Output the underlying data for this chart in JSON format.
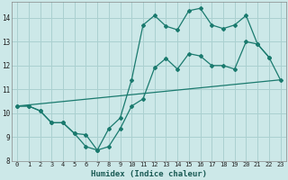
{
  "xlabel": "Humidex (Indice chaleur)",
  "xlim": [
    -0.5,
    23.5
  ],
  "ylim": [
    8,
    14.67
  ],
  "yticks": [
    8,
    9,
    10,
    11,
    12,
    13,
    14
  ],
  "xticks": [
    0,
    1,
    2,
    3,
    4,
    5,
    6,
    7,
    8,
    9,
    10,
    11,
    12,
    13,
    14,
    15,
    16,
    17,
    18,
    19,
    20,
    21,
    22,
    23
  ],
  "bg_color": "#cce8e8",
  "grid_color": "#aad0d0",
  "line_color": "#1a7a6e",
  "line1_x": [
    0,
    1,
    2,
    3,
    4,
    5,
    6,
    7,
    8,
    9,
    10,
    11,
    12,
    13,
    14,
    15,
    16,
    17,
    18,
    19,
    20,
    21,
    22
  ],
  "line1_y": [
    10.3,
    10.3,
    10.1,
    9.6,
    9.6,
    9.15,
    9.1,
    8.45,
    9.35,
    9.8,
    11.4,
    13.7,
    14.1,
    13.65,
    13.5,
    14.3,
    14.4,
    13.7,
    13.55,
    13.7,
    14.1,
    12.9,
    12.35
  ],
  "line2_x": [
    0,
    1,
    2,
    3,
    4,
    5,
    6,
    7,
    8,
    9,
    10,
    11,
    12,
    13,
    14,
    15,
    16,
    17,
    18,
    19,
    20,
    21,
    22,
    23
  ],
  "line2_y": [
    10.3,
    10.3,
    10.1,
    9.6,
    9.6,
    9.15,
    8.6,
    8.45,
    8.6,
    9.35,
    10.3,
    10.6,
    11.9,
    12.3,
    11.85,
    12.5,
    12.4,
    12.0,
    12.0,
    11.85,
    13.0,
    12.9,
    12.35,
    11.4
  ],
  "line3_x": [
    0,
    23
  ],
  "line3_y": [
    10.3,
    11.4
  ]
}
